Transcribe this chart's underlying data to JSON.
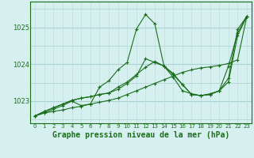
{
  "xlabel": "Graphe pression niveau de la mer (hPa)",
  "hours": [
    0,
    1,
    2,
    3,
    4,
    5,
    6,
    7,
    8,
    9,
    10,
    11,
    12,
    13,
    14,
    15,
    16,
    17,
    18,
    19,
    20,
    21,
    22,
    23
  ],
  "line1": [
    1022.6,
    1022.68,
    1022.72,
    1022.76,
    1022.82,
    1022.86,
    1022.92,
    1022.97,
    1023.02,
    1023.08,
    1023.18,
    1023.28,
    1023.38,
    1023.48,
    1023.58,
    1023.68,
    1023.78,
    1023.85,
    1023.9,
    1023.93,
    1023.97,
    1024.02,
    1024.12,
    1025.3
  ],
  "line2": [
    1022.6,
    1022.68,
    1022.78,
    1022.88,
    1023.0,
    1022.88,
    1022.92,
    1023.38,
    1023.55,
    1023.85,
    1024.05,
    1024.95,
    1025.35,
    1025.1,
    1023.95,
    1023.65,
    1023.28,
    1023.2,
    1023.15,
    1023.2,
    1023.28,
    1023.95,
    1024.85,
    1025.3
  ],
  "line3": [
    1022.6,
    1022.72,
    1022.82,
    1022.92,
    1023.02,
    1023.08,
    1023.12,
    1023.18,
    1023.22,
    1023.32,
    1023.48,
    1023.68,
    1024.15,
    1024.05,
    1023.95,
    1023.75,
    1023.45,
    1023.18,
    1023.15,
    1023.18,
    1023.28,
    1023.52,
    1024.78,
    1025.3
  ],
  "line4": [
    1022.6,
    1022.72,
    1022.82,
    1022.92,
    1023.02,
    1023.08,
    1023.12,
    1023.18,
    1023.22,
    1023.38,
    1023.52,
    1023.72,
    1023.92,
    1024.08,
    1023.95,
    1023.72,
    1023.45,
    1023.18,
    1023.15,
    1023.18,
    1023.28,
    1023.62,
    1024.95,
    1025.3
  ],
  "line_color": "#1a6e1a",
  "bg_color": "#d6f0f0",
  "grid_h_color": "#aacfcf",
  "grid_v_color": "#c0dede",
  "ylim": [
    1022.4,
    1025.7
  ],
  "yticks": [
    1023,
    1024,
    1025
  ],
  "marker": "+",
  "markersize": 3,
  "linewidth": 0.8,
  "xlabel_fontsize": 7,
  "tick_fontsize": 5
}
